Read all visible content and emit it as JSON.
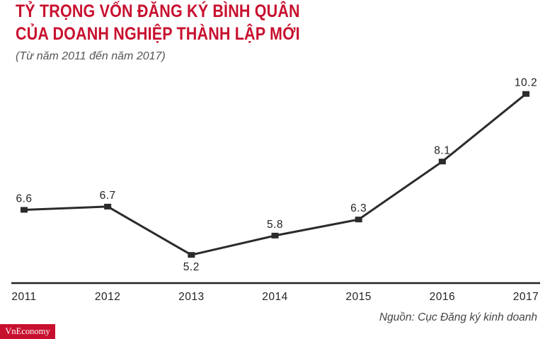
{
  "header": {
    "title_line1": "TỶ TRỌNG VỐN ĐĂNG KÝ BÌNH QUÂN",
    "title_line2": "CỦA DOANH NGHIỆP THÀNH LẬP MỚI",
    "subtitle": "(Từ năm 2011 đến năm 2017)"
  },
  "chart_data": {
    "type": "line",
    "title": "TỶ TRỌNG VỐN ĐĂNG KÝ BÌNH QUÂN CỦA DOANH NGHIỆP THÀNH LẬP MỚI",
    "subtitle": "(Từ năm 2011 đến năm 2017)",
    "categories": [
      "2011",
      "2012",
      "2013",
      "2014",
      "2015",
      "2016",
      "2017"
    ],
    "series": [
      {
        "values": [
          6.6,
          6.7,
          5.2,
          5.8,
          6.3,
          8.1,
          10.2
        ],
        "color": "#2b2b2b"
      }
    ],
    "data_labels": [
      "6.6",
      "6.7",
      "5.2",
      "5.8",
      "6.3",
      "8.1",
      "10.2"
    ],
    "label_side": [
      "above",
      "above",
      "below",
      "above",
      "above",
      "above",
      "above"
    ],
    "ylim": [
      4.5,
      10.7
    ],
    "xlabel": "",
    "ylabel": "",
    "grid": false,
    "legend": "none"
  },
  "footer": {
    "source": "Nguồn: Cục Đăng ký kinh doanh",
    "logo": "VnEconomy"
  },
  "colors": {
    "title": "#c8102e",
    "line": "#2b2b2b",
    "axis": "#222222",
    "logo_bg": "#c8102e"
  }
}
